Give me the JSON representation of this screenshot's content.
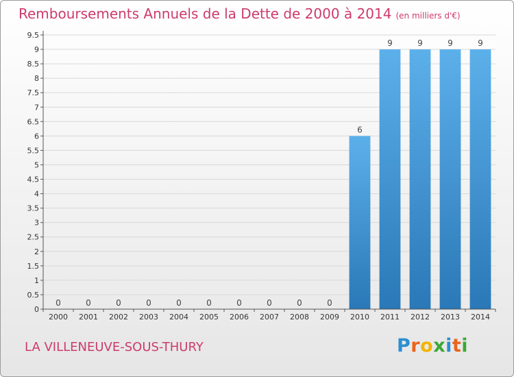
{
  "header": {
    "title": "Remboursements Annuels de la Dette de 2000 à 2014",
    "unit": "(en milliers d'€)"
  },
  "footer": {
    "commune": "LA VILLENEUVE-SOUS-THURY",
    "logo_letters": [
      "P",
      "r",
      "o",
      "x",
      "i",
      "t",
      "i"
    ],
    "logo_colors": [
      "#2b8fd0",
      "#e9631c",
      "#f4b400",
      "#3aa935",
      "#2b8fd0",
      "#e9631c",
      "#3aa935"
    ]
  },
  "colors": {
    "bar_top": "#5cb0ea",
    "bar_bottom": "#2a78b7",
    "axis": "#555555",
    "grid": "#d8d8d8"
  },
  "chart_data": {
    "type": "bar",
    "title": "Remboursements Annuels de la Dette de 2000 à 2014",
    "unit": "(en milliers d'€)",
    "categories": [
      "2000",
      "2001",
      "2002",
      "2003",
      "2004",
      "2005",
      "2006",
      "2007",
      "2008",
      "2009",
      "2010",
      "2011",
      "2012",
      "2013",
      "2014"
    ],
    "values": [
      0,
      0,
      0,
      0,
      0,
      0,
      0,
      0,
      0,
      0,
      6,
      9,
      9,
      9,
      9
    ],
    "value_labels": [
      "0",
      "0",
      "0",
      "0",
      "0",
      "0",
      "0",
      "0",
      "0",
      "0",
      "6",
      "9",
      "9",
      "9",
      "9"
    ],
    "yticks": [
      "0",
      "0.5",
      "1",
      "1.5",
      "2",
      "2.5",
      "3",
      "3.5",
      "4",
      "4.5",
      "5",
      "5.5",
      "6",
      "6.5",
      "7",
      "7.5",
      "8",
      "8.5",
      "9",
      "9.5"
    ],
    "ylim": [
      0,
      9.5
    ],
    "grid": true,
    "legend": "none"
  }
}
